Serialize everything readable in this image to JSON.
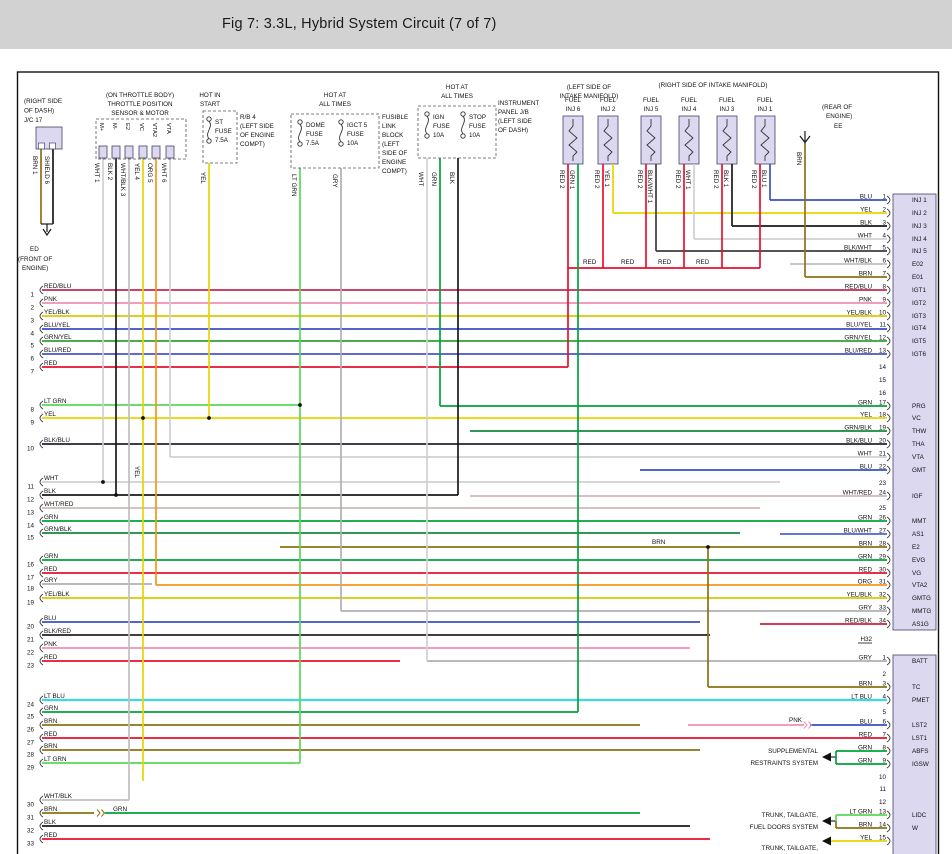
{
  "header": {
    "title": "Fig 7: 3.3L, Hybrid System Circuit (7 of 7)"
  },
  "colors": {
    "RED": "#e8112d",
    "PNK": "#ee8fb4",
    "YEL": "#e8d400",
    "ORG": "#f7941d",
    "GRN": "#00a33d",
    "LT GRN": "#57d957",
    "BLU": "#3a4fc0",
    "LT BLU": "#40d8e0",
    "BRN": "#8c7212",
    "GRY": "#b0b0b0",
    "WHT": "#d0d0d0",
    "BLK": "#1a1a1a",
    "SHIELD": "#1a1a1a",
    "RED/BLU": "#c22950",
    "YEL/BLK": "#d9c900",
    "BLU/YEL": "#3b4cc8",
    "GRN/YEL": "#2fa134",
    "BLU/RED": "#4a55c2",
    "GRN/BLK": "#13893a",
    "BLK/BLU": "#23233a",
    "BLK/WHT": "#3d3d3d",
    "WHT/BLK": "#bfbfbf",
    "WHT/RED": "#d0b8b8",
    "BLU/WHT": "#4f62d5",
    "RED/BLK": "#d12038",
    "BLK/RED": "#2b1f1f"
  },
  "components": {
    "jc17": {
      "caption": [
        "(RIGHT SIDE",
        "OF DASH)",
        "J/C 17"
      ],
      "leads": [
        "BRN 1",
        "SHIELD 6"
      ]
    },
    "ed_ground": {
      "lines": [
        "ED",
        "(FRONT OF",
        "ENGINE)"
      ]
    },
    "throttle": {
      "caption": [
        "(ON THROTTLE BODY)",
        "THROTTLE POSITION",
        "SENSOR & MOTOR"
      ],
      "pins": [
        "M+",
        "M-",
        "E2",
        "VC",
        "VTA2",
        "VTA"
      ],
      "leads": [
        "WHT 1",
        "BLK 2",
        "WHT/BLK 3",
        "YEL 4",
        "ORG 5",
        "WHT 6"
      ]
    },
    "st_fuse": {
      "caption": [
        "HOT IN",
        "START"
      ],
      "fuse": [
        "ST",
        "FUSE",
        "7.5A"
      ],
      "side": [
        "R/B 4",
        "(LEFT SIDE",
        "OF ENGINE",
        "COMPT)"
      ],
      "lead": "YEL"
    },
    "fusible_link": {
      "caption": [
        "HOT AT",
        "ALL TIMES"
      ],
      "fuses": [
        [
          "DOME",
          "FUSE",
          "7.5A"
        ],
        [
          "IGCT 5",
          "FUSE",
          "10A"
        ]
      ],
      "side": [
        "FUSIBLE",
        "LINK",
        "BLOCK",
        "(LEFT",
        "SIDE OF",
        "ENGINE",
        "COMPT)"
      ],
      "leads": [
        "LT GRN",
        "GRY"
      ]
    },
    "instr_jb": {
      "caption": [
        "HOT AT",
        "ALL TIMES"
      ],
      "fuses": [
        [
          "IGN",
          "FUSE",
          "10A"
        ],
        [
          "STOP",
          "FUSE",
          "10A"
        ]
      ],
      "side": [
        "INSTRUMENT",
        "PANEL J/B",
        "(LEFT SIDE",
        "OF DASH)"
      ],
      "leads": [
        "WHT",
        "GRN",
        "BLK"
      ]
    },
    "injectors": {
      "caption_left": [
        "(LEFT SIDE OF",
        "INTAKE MANIFOLD)"
      ],
      "caption_right": "(RIGHT SIDE OF INTAKE MANIFOLD)",
      "items": [
        {
          "name": [
            "FUEL",
            "INJ 6"
          ],
          "feed": "RED 2",
          "signal": "GRN 1"
        },
        {
          "name": [
            "FUEL",
            "INJ 2"
          ],
          "feed": "RED 2",
          "signal": "YEL 1"
        },
        {
          "name": [
            "FUEL",
            "INJ 5"
          ],
          "feed": "RED 2",
          "signal": "BLK/WHT 1"
        },
        {
          "name": [
            "FUEL",
            "INJ 4"
          ],
          "feed": "RED 2",
          "signal": "WHT 1"
        },
        {
          "name": [
            "FUEL",
            "INJ 3"
          ],
          "feed": "RED 2",
          "signal": "BLK 1"
        },
        {
          "name": [
            "FUEL",
            "INJ 1"
          ],
          "feed": "RED 2",
          "signal": "BLU 1"
        }
      ]
    },
    "ee_ground": {
      "caption": [
        "(REAR OF",
        "ENGINE)"
      ],
      "label": "EE",
      "lead": "BRN"
    }
  },
  "left_rows": [
    {
      "n": 1,
      "label": "RED/BLU"
    },
    {
      "n": 2,
      "label": "PNK"
    },
    {
      "n": 3,
      "label": "YEL/BLK"
    },
    {
      "n": 4,
      "label": "BLU/YEL"
    },
    {
      "n": 5,
      "label": "GRN/YEL"
    },
    {
      "n": 6,
      "label": "BLU/RED"
    },
    {
      "n": 7,
      "label": "RED"
    },
    {
      "n": 8,
      "label": "LT GRN"
    },
    {
      "n": 9,
      "label": "YEL"
    },
    {
      "n": 10,
      "label": "BLK/BLU"
    },
    {
      "n": 11,
      "label": "WHT"
    },
    {
      "n": 12,
      "label": "BLK"
    },
    {
      "n": 13,
      "label": "WHT/RED"
    },
    {
      "n": 14,
      "label": "GRN"
    },
    {
      "n": 15,
      "label": "GRN/BLK"
    },
    {
      "n": 16,
      "label": "GRN"
    },
    {
      "n": 17,
      "label": "RED"
    },
    {
      "n": 18,
      "label": "GRY"
    },
    {
      "n": 19,
      "label": "YEL/BLK"
    },
    {
      "n": 20,
      "label": "BLU"
    },
    {
      "n": 21,
      "label": "BLK/RED"
    },
    {
      "n": 22,
      "label": "PNK"
    },
    {
      "n": 23,
      "label": "RED"
    },
    {
      "n": 24,
      "label": "LT BLU"
    },
    {
      "n": 25,
      "label": "GRN"
    },
    {
      "n": 26,
      "label": "BRN"
    },
    {
      "n": 27,
      "label": "RED"
    },
    {
      "n": 28,
      "label": "BRN"
    },
    {
      "n": 29,
      "label": "LT GRN"
    },
    {
      "n": 30,
      "label": "WHT/BLK"
    },
    {
      "n": 31,
      "label": "BRN",
      "label2": "GRN"
    },
    {
      "n": 32,
      "label": "BLK"
    },
    {
      "n": 33,
      "label": "RED"
    }
  ],
  "strip_a": {
    "id": "H32",
    "pins": [
      {
        "n": 1,
        "color": "BLU",
        "name": "INJ 1"
      },
      {
        "n": 2,
        "color": "YEL",
        "name": "INJ 2"
      },
      {
        "n": 3,
        "color": "BLK",
        "name": "INJ 3"
      },
      {
        "n": 4,
        "color": "WHT",
        "name": "INJ 4"
      },
      {
        "n": 5,
        "color": "BLK/WHT",
        "name": "INJ 5"
      },
      {
        "n": 6,
        "color": "WHT/BLK",
        "name": "E02"
      },
      {
        "n": 7,
        "color": "BRN",
        "name": "E01"
      },
      {
        "n": 8,
        "color": "RED/BLU",
        "name": "IGT1"
      },
      {
        "n": 9,
        "color": "PNK",
        "name": "IGT2"
      },
      {
        "n": 10,
        "color": "YEL/BLK",
        "name": "IGT3"
      },
      {
        "n": 11,
        "color": "BLU/YEL",
        "name": "IGT4"
      },
      {
        "n": 12,
        "color": "GRN/YEL",
        "name": "IGT5"
      },
      {
        "n": 13,
        "color": "BLU/RED",
        "name": "IGT6"
      },
      {
        "n": 14,
        "color": "",
        "name": ""
      },
      {
        "n": 15,
        "color": "",
        "name": ""
      },
      {
        "n": 16,
        "color": "",
        "name": ""
      },
      {
        "n": 17,
        "color": "GRN",
        "name": "PRG"
      },
      {
        "n": 18,
        "color": "YEL",
        "name": "VC"
      },
      {
        "n": 19,
        "color": "GRN/BLK",
        "name": "THW"
      },
      {
        "n": 20,
        "color": "BLK/BLU",
        "name": "THA"
      },
      {
        "n": 21,
        "color": "WHT",
        "name": "VTA"
      },
      {
        "n": 22,
        "color": "BLU",
        "name": "GMT"
      },
      {
        "n": 23,
        "color": "",
        "name": ""
      },
      {
        "n": 24,
        "color": "WHT/RED",
        "name": "IGF"
      },
      {
        "n": 25,
        "color": "",
        "name": ""
      },
      {
        "n": 26,
        "color": "GRN",
        "name": "MMT"
      },
      {
        "n": 27,
        "color": "BLU/WHT",
        "name": "AS1"
      },
      {
        "n": 28,
        "color": "BRN",
        "name": "E2"
      },
      {
        "n": 29,
        "color": "GRN",
        "name": "EVG"
      },
      {
        "n": 30,
        "color": "RED",
        "name": "VG"
      },
      {
        "n": 31,
        "color": "ORG",
        "name": "VTA2"
      },
      {
        "n": 32,
        "color": "YEL/BLK",
        "name": "GMTG"
      },
      {
        "n": 33,
        "color": "GRY",
        "name": "MMTG"
      },
      {
        "n": 34,
        "color": "RED/BLK",
        "name": "AS1G"
      }
    ]
  },
  "strip_b": {
    "pins": [
      {
        "n": 1,
        "color": "GRY",
        "name": "BATT"
      },
      {
        "n": 2,
        "color": "",
        "name": ""
      },
      {
        "n": 3,
        "color": "BRN",
        "name": "TC"
      },
      {
        "n": 4,
        "color": "LT BLU",
        "name": "PMET"
      },
      {
        "n": 5,
        "color": "",
        "name": ""
      },
      {
        "n": 6,
        "color": "BLU",
        "name": "LST2"
      },
      {
        "n": 7,
        "color": "RED",
        "name": "LST1"
      },
      {
        "n": 8,
        "color": "GRN",
        "name": "ABFS"
      },
      {
        "n": 9,
        "color": "GRN",
        "name": "IGSW"
      },
      {
        "n": 10,
        "color": "",
        "name": ""
      },
      {
        "n": 11,
        "color": "",
        "name": ""
      },
      {
        "n": 12,
        "color": "",
        "name": ""
      },
      {
        "n": 13,
        "color": "LT GRN",
        "name": "LIDC"
      },
      {
        "n": 14,
        "color": "BRN",
        "name": "W"
      },
      {
        "n": 15,
        "color": "YEL",
        "name": ""
      }
    ]
  },
  "floating_labels": {
    "red_feed": "RED",
    "brn_junction": "BRN",
    "pnk_splice": "PNK",
    "yel_riser": "YEL"
  },
  "systems": [
    {
      "lines": [
        "SUPPLEMENTAL",
        "RESTRAINTS SYSTEM"
      ]
    },
    {
      "lines": [
        "TRUNK, TAILGATE,",
        "FUEL DOORS SYSTEM"
      ]
    },
    {
      "lines": [
        "TRUNK, TAILGATE,"
      ]
    }
  ]
}
